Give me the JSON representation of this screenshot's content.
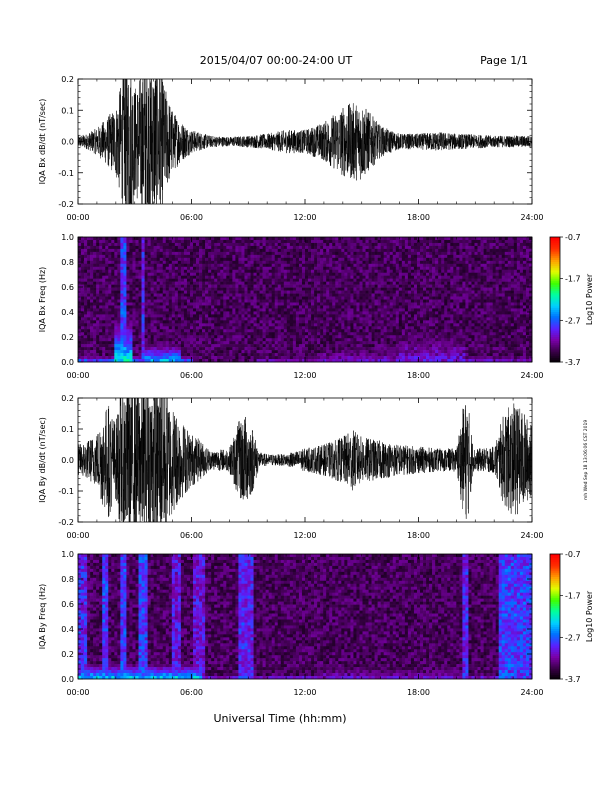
{
  "header": {
    "title": "2015/04/07  00:00-24:00 UT",
    "page": "Page 1/1"
  },
  "side_note": "mh Wed Sep 18 13:06:06 CST 2019",
  "colorbar": {
    "label": "Log10 Power",
    "ticks": [
      "-0.7",
      "-1.7",
      "-2.7",
      "-3.7"
    ],
    "colors": [
      "#000000",
      "#3a0048",
      "#7a00a8",
      "#5a20ff",
      "#0070ff",
      "#00d0ff",
      "#00ffa0",
      "#40ff00",
      "#e0ff00",
      "#ffa000",
      "#ff3000",
      "#ff0000"
    ]
  },
  "chart_data": [
    {
      "type": "line",
      "id": "bx-dbdt",
      "ylabel": "IQA Bx dB/dt (nT/sec)",
      "ylim": [
        -0.2,
        0.2
      ],
      "yticks": [
        "0.2",
        "0.1",
        "0.0",
        "-0.1",
        "-0.2"
      ],
      "xlim": [
        0,
        24
      ],
      "xticks": [
        "00:00",
        "06:00",
        "12:00",
        "18:00",
        "24:00"
      ],
      "series": [
        {
          "x": [
            0,
            0.5,
            1.0,
            1.5,
            2.0,
            2.5,
            2.8,
            3.0,
            3.5,
            4.0,
            4.3,
            4.6,
            5.0,
            5.5,
            6.0,
            7.0,
            8.0,
            9.0,
            10.0,
            11.0,
            12.0,
            12.5,
            13.0,
            13.5,
            14.0,
            14.5,
            15.0,
            15.5,
            16.0,
            17.0,
            18.0,
            19.0,
            20.0,
            21.0,
            22.0,
            23.0,
            24.0
          ],
          "amplitude": [
            0.015,
            0.02,
            0.035,
            0.06,
            0.09,
            0.2,
            0.2,
            0.14,
            0.2,
            0.2,
            0.2,
            0.14,
            0.08,
            0.05,
            0.03,
            0.015,
            0.012,
            0.015,
            0.02,
            0.03,
            0.03,
            0.04,
            0.05,
            0.07,
            0.09,
            0.1,
            0.1,
            0.07,
            0.04,
            0.02,
            0.02,
            0.025,
            0.02,
            0.018,
            0.015,
            0.015,
            0.015
          ]
        }
      ]
    },
    {
      "type": "heatmap",
      "id": "bx-freq",
      "ylabel": "IQA Bx Freq (Hz)",
      "ylim": [
        0,
        1.0
      ],
      "yticks": [
        "1.0",
        "0.8",
        "0.6",
        "0.4",
        "0.2",
        "0.0"
      ],
      "xlim": [
        0,
        24
      ],
      "xticks": [
        "00:00",
        "06:00",
        "12:00",
        "18:00",
        "24:00"
      ],
      "color_range": [
        -3.7,
        -0.7
      ],
      "features": [
        {
          "x0": 2.3,
          "x1": 2.6,
          "f_top": 1.0,
          "power": -2.8
        },
        {
          "x0": 3.3,
          "x1": 3.5,
          "f_top": 1.0,
          "power": -2.9
        },
        {
          "x0": 3.5,
          "x1": 5.5,
          "f_top": 0.15,
          "power": -2.4
        },
        {
          "x0": 2.0,
          "x1": 2.8,
          "f_top": 0.35,
          "power": -2.2
        },
        {
          "x0": 0.0,
          "x1": 6.0,
          "f_top": 0.05,
          "power": -2.6
        },
        {
          "x0": 9.5,
          "x1": 24.0,
          "f_top": 0.05,
          "power": -3.0
        },
        {
          "x0": 13.0,
          "x1": 17.0,
          "f_top": 0.15,
          "power": -3.1
        },
        {
          "x0": 17.0,
          "x1": 20.5,
          "f_top": 0.28,
          "power": -3.0
        }
      ]
    },
    {
      "type": "line",
      "id": "by-dbdt",
      "ylabel": "IQA By dB/dt (nT/sec)",
      "ylim": [
        -0.2,
        0.2
      ],
      "yticks": [
        "0.2",
        "0.1",
        "0.0",
        "-0.1",
        "-0.2"
      ],
      "xlim": [
        0,
        24
      ],
      "xticks": [
        "00:00",
        "06:00",
        "12:00",
        "18:00",
        "24:00"
      ],
      "series": [
        {
          "x": [
            0,
            0.5,
            1.0,
            1.3,
            1.6,
            2.0,
            2.3,
            2.6,
            3.0,
            3.5,
            4.0,
            4.5,
            5.0,
            5.5,
            6.0,
            6.5,
            7.0,
            8.0,
            8.5,
            8.8,
            9.2,
            9.6,
            10.0,
            11.0,
            12.0,
            13.0,
            14.0,
            14.5,
            15.0,
            16.0,
            17.0,
            18.0,
            19.0,
            20.0,
            20.4,
            20.6,
            20.9,
            21.5,
            22.0,
            22.5,
            23.0,
            23.5,
            24.0
          ],
          "amplitude": [
            0.04,
            0.05,
            0.07,
            0.12,
            0.15,
            0.1,
            0.2,
            0.2,
            0.2,
            0.2,
            0.2,
            0.2,
            0.14,
            0.1,
            0.07,
            0.05,
            0.025,
            0.03,
            0.1,
            0.12,
            0.09,
            0.02,
            0.015,
            0.015,
            0.03,
            0.04,
            0.06,
            0.08,
            0.06,
            0.05,
            0.04,
            0.035,
            0.03,
            0.03,
            0.15,
            0.16,
            0.03,
            0.03,
            0.035,
            0.12,
            0.15,
            0.13,
            0.09
          ]
        }
      ]
    },
    {
      "type": "heatmap",
      "id": "by-freq",
      "ylabel": "IQA By Freq (Hz)",
      "ylim": [
        0,
        1.0
      ],
      "yticks": [
        "1.0",
        "0.8",
        "0.6",
        "0.4",
        "0.2",
        "0.0"
      ],
      "xlim": [
        0,
        24
      ],
      "xticks": [
        "00:00",
        "06:00",
        "12:00",
        "18:00",
        "24:00"
      ],
      "color_range": [
        -3.7,
        -0.7
      ],
      "features": [
        {
          "x0": 0.0,
          "x1": 0.4,
          "f_top": 1.0,
          "power": -2.9
        },
        {
          "x0": 1.3,
          "x1": 1.6,
          "f_top": 1.0,
          "power": -2.8
        },
        {
          "x0": 2.2,
          "x1": 2.6,
          "f_top": 1.0,
          "power": -2.8
        },
        {
          "x0": 3.2,
          "x1": 3.6,
          "f_top": 1.0,
          "power": -2.8
        },
        {
          "x0": 5.0,
          "x1": 5.5,
          "f_top": 1.0,
          "power": -3.0
        },
        {
          "x0": 6.1,
          "x1": 6.7,
          "f_top": 1.0,
          "power": -3.0
        },
        {
          "x0": 8.5,
          "x1": 9.3,
          "f_top": 1.0,
          "power": -2.9
        },
        {
          "x0": 20.4,
          "x1": 20.7,
          "f_top": 1.0,
          "power": -2.9
        },
        {
          "x0": 22.3,
          "x1": 24.0,
          "f_top": 1.0,
          "power": -2.8
        },
        {
          "x0": 0.0,
          "x1": 6.5,
          "f_top": 0.12,
          "power": -2.3
        },
        {
          "x0": 12.5,
          "x1": 20.5,
          "f_top": 0.12,
          "power": -3.1
        },
        {
          "x0": 6.5,
          "x1": 24.0,
          "f_top": 0.03,
          "power": -2.8
        }
      ]
    }
  ],
  "xlabel": "Universal Time (hh:mm)"
}
